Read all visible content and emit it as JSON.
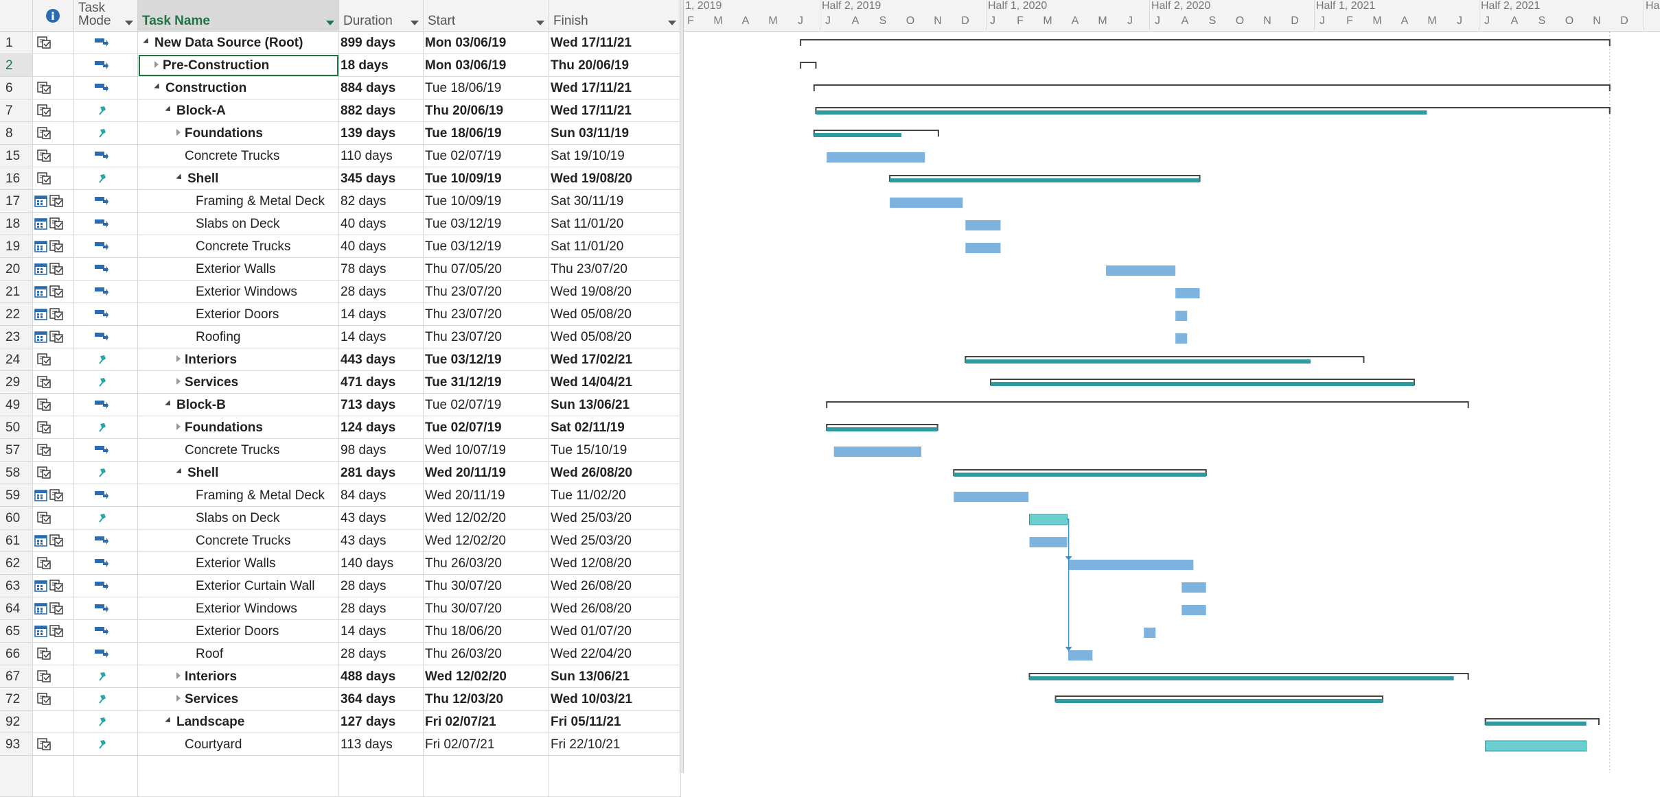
{
  "headers": {
    "indicators_icon": "info-icon",
    "task_mode_line1": "Task",
    "task_mode_line2": "Mode",
    "task_name": "Task Name",
    "duration": "Duration",
    "start": "Start",
    "finish": "Finish"
  },
  "timeline": {
    "top": [
      "1, 2019",
      "Half 2, 2019",
      "Half 1, 2020",
      "Half 2, 2020",
      "Half 1, 2021",
      "Half 2, 2021",
      "Ha"
    ],
    "months": [
      "F",
      "M",
      "A",
      "M",
      "J",
      "J",
      "A",
      "S",
      "O",
      "N",
      "D",
      "J",
      "F",
      "M",
      "A",
      "M",
      "J",
      "J",
      "A",
      "S",
      "O",
      "N",
      "D",
      "J",
      "F",
      "M",
      "A",
      "M",
      "J",
      "J",
      "A",
      "S",
      "O",
      "N",
      "D"
    ]
  },
  "colors": {
    "summary_bar": "#2e9aa0",
    "task_bar": "#7eb3e0",
    "manual_bar": "#6ccfcf",
    "bracket": "#444444",
    "selected_green": "#217346"
  },
  "tasks": [
    {
      "id": "1",
      "ind": "notes",
      "mode": "auto",
      "name": "New Data Source (Root)",
      "level": 0,
      "toggle": "open",
      "bold": true,
      "duration": "899 days",
      "start": "Mon 03/06/19",
      "finish": "Wed 17/11/21",
      "start_bold": true,
      "bar": {
        "type": "summary",
        "s": "2019-06-03",
        "f": "2021-11-17",
        "progress": null
      }
    },
    {
      "id": "2",
      "ind": "",
      "mode": "auto",
      "name": "Pre-Construction",
      "level": 1,
      "toggle": "closed",
      "bold": true,
      "duration": "18 days",
      "start": "Mon 03/06/19",
      "finish": "Thu 20/06/19",
      "start_bold": true,
      "selected": true,
      "bar": {
        "type": "summary",
        "s": "2019-06-03",
        "f": "2019-06-20",
        "progress": null
      }
    },
    {
      "id": "6",
      "ind": "notes",
      "mode": "auto",
      "name": "Construction",
      "level": 1,
      "toggle": "open",
      "bold": true,
      "duration": "884 days",
      "start": "Tue 18/06/19",
      "finish": "Wed 17/11/21",
      "start_bold": false,
      "bar": {
        "type": "summary",
        "s": "2019-06-18",
        "f": "2021-11-17",
        "progress": null
      }
    },
    {
      "id": "7",
      "ind": "notes",
      "mode": "manual",
      "name": "Block-A",
      "level": 2,
      "toggle": "open",
      "bold": true,
      "duration": "882 days",
      "start": "Thu 20/06/19",
      "finish": "Wed 17/11/21",
      "start_bold": true,
      "bar": {
        "type": "msummary",
        "s": "2019-06-20",
        "f": "2021-11-17",
        "inner_f": "2021-04-28"
      }
    },
    {
      "id": "8",
      "ind": "notes",
      "mode": "manual",
      "name": "Foundations",
      "level": 3,
      "toggle": "closed",
      "bold": true,
      "duration": "139 days",
      "start": "Tue 18/06/19",
      "finish": "Sun 03/11/19",
      "start_bold": true,
      "bar": {
        "type": "msummary",
        "s": "2019-06-18",
        "f": "2019-11-03",
        "inner_f": "2019-09-23"
      }
    },
    {
      "id": "15",
      "ind": "notes",
      "mode": "auto",
      "name": "Concrete Trucks",
      "level": 3,
      "toggle": "",
      "bold": false,
      "duration": "110 days",
      "start": "Tue 02/07/19",
      "finish": "Sat 19/10/19",
      "start_bold": false,
      "bar": {
        "type": "task",
        "s": "2019-07-02",
        "f": "2019-10-19"
      }
    },
    {
      "id": "16",
      "ind": "notes",
      "mode": "manual",
      "name": "Shell",
      "level": 3,
      "toggle": "open",
      "bold": true,
      "duration": "345 days",
      "start": "Tue 10/09/19",
      "finish": "Wed 19/08/20",
      "start_bold": true,
      "bar": {
        "type": "msummary",
        "s": "2019-09-10",
        "f": "2020-08-19",
        "inner_f": "2020-08-19"
      }
    },
    {
      "id": "17",
      "ind": "cal",
      "mode": "auto",
      "name": "Framing & Metal Deck",
      "level": 4,
      "toggle": "",
      "bold": false,
      "duration": "82 days",
      "start": "Tue 10/09/19",
      "finish": "Sat 30/11/19",
      "start_bold": false,
      "bar": {
        "type": "task",
        "s": "2019-09-10",
        "f": "2019-11-30"
      }
    },
    {
      "id": "18",
      "ind": "cal",
      "mode": "auto",
      "name": "Slabs on Deck",
      "level": 4,
      "toggle": "",
      "bold": false,
      "duration": "40 days",
      "start": "Tue 03/12/19",
      "finish": "Sat 11/01/20",
      "start_bold": false,
      "bar": {
        "type": "task",
        "s": "2019-12-03",
        "f": "2020-01-11"
      }
    },
    {
      "id": "19",
      "ind": "cal",
      "mode": "auto",
      "name": "Concrete Trucks",
      "level": 4,
      "toggle": "",
      "bold": false,
      "duration": "40 days",
      "start": "Tue 03/12/19",
      "finish": "Sat 11/01/20",
      "start_bold": false,
      "bar": {
        "type": "task",
        "s": "2019-12-03",
        "f": "2020-01-11"
      }
    },
    {
      "id": "20",
      "ind": "cal",
      "mode": "auto",
      "name": "Exterior Walls",
      "level": 4,
      "toggle": "",
      "bold": false,
      "duration": "78 days",
      "start": "Thu 07/05/20",
      "finish": "Thu 23/07/20",
      "start_bold": false,
      "bar": {
        "type": "task",
        "s": "2020-05-07",
        "f": "2020-07-23"
      }
    },
    {
      "id": "21",
      "ind": "cal",
      "mode": "auto",
      "name": "Exterior Windows",
      "level": 4,
      "toggle": "",
      "bold": false,
      "duration": "28 days",
      "start": "Thu 23/07/20",
      "finish": "Wed 19/08/20",
      "start_bold": false,
      "bar": {
        "type": "task",
        "s": "2020-07-23",
        "f": "2020-08-19"
      }
    },
    {
      "id": "22",
      "ind": "cal",
      "mode": "auto",
      "name": "Exterior Doors",
      "level": 4,
      "toggle": "",
      "bold": false,
      "duration": "14 days",
      "start": "Thu 23/07/20",
      "finish": "Wed 05/08/20",
      "start_bold": false,
      "bar": {
        "type": "task",
        "s": "2020-07-23",
        "f": "2020-08-05"
      }
    },
    {
      "id": "23",
      "ind": "cal",
      "mode": "auto",
      "name": "Roofing",
      "level": 4,
      "toggle": "",
      "bold": false,
      "duration": "14 days",
      "start": "Thu 23/07/20",
      "finish": "Wed 05/08/20",
      "start_bold": false,
      "bar": {
        "type": "task",
        "s": "2020-07-23",
        "f": "2020-08-05"
      }
    },
    {
      "id": "24",
      "ind": "notes",
      "mode": "manual",
      "name": "Interiors",
      "level": 3,
      "toggle": "closed",
      "bold": true,
      "duration": "443 days",
      "start": "Tue 03/12/19",
      "finish": "Wed 17/02/21",
      "start_bold": true,
      "bar": {
        "type": "msummary",
        "s": "2019-12-03",
        "f": "2021-02-17",
        "inner_f": "2020-12-20"
      }
    },
    {
      "id": "29",
      "ind": "notes",
      "mode": "manual",
      "name": "Services",
      "level": 3,
      "toggle": "closed",
      "bold": true,
      "duration": "471 days",
      "start": "Tue 31/12/19",
      "finish": "Wed 14/04/21",
      "start_bold": true,
      "bar": {
        "type": "msummary",
        "s": "2019-12-31",
        "f": "2021-04-14",
        "inner_f": "2021-04-14"
      }
    },
    {
      "id": "49",
      "ind": "notes",
      "mode": "auto",
      "name": "Block-B",
      "level": 2,
      "toggle": "open",
      "bold": true,
      "duration": "713 days",
      "start": "Tue 02/07/19",
      "finish": "Sun 13/06/21",
      "start_bold": false,
      "bar": {
        "type": "summary",
        "s": "2019-07-02",
        "f": "2021-06-13",
        "progress": null
      }
    },
    {
      "id": "50",
      "ind": "notes",
      "mode": "manual",
      "name": "Foundations",
      "level": 3,
      "toggle": "closed",
      "bold": true,
      "duration": "124 days",
      "start": "Tue 02/07/19",
      "finish": "Sat 02/11/19",
      "start_bold": true,
      "bar": {
        "type": "msummary",
        "s": "2019-07-02",
        "f": "2019-11-02",
        "inner_f": "2019-11-02"
      }
    },
    {
      "id": "57",
      "ind": "notes",
      "mode": "auto",
      "name": "Concrete Trucks",
      "level": 3,
      "toggle": "",
      "bold": false,
      "duration": "98 days",
      "start": "Wed 10/07/19",
      "finish": "Tue 15/10/19",
      "start_bold": false,
      "bar": {
        "type": "task",
        "s": "2019-07-10",
        "f": "2019-10-15"
      }
    },
    {
      "id": "58",
      "ind": "notes",
      "mode": "manual",
      "name": "Shell",
      "level": 3,
      "toggle": "open",
      "bold": true,
      "duration": "281 days",
      "start": "Wed 20/11/19",
      "finish": "Wed 26/08/20",
      "start_bold": true,
      "bar": {
        "type": "msummary",
        "s": "2019-11-20",
        "f": "2020-08-26",
        "inner_f": "2020-08-26"
      }
    },
    {
      "id": "59",
      "ind": "cal",
      "mode": "auto",
      "name": "Framing & Metal Deck",
      "level": 4,
      "toggle": "",
      "bold": false,
      "duration": "84 days",
      "start": "Wed 20/11/19",
      "finish": "Tue 11/02/20",
      "start_bold": false,
      "bar": {
        "type": "task",
        "s": "2019-11-20",
        "f": "2020-02-11"
      }
    },
    {
      "id": "60",
      "ind": "notes",
      "mode": "manual",
      "name": "Slabs on Deck",
      "level": 4,
      "toggle": "",
      "bold": false,
      "duration": "43 days",
      "start": "Wed 12/02/20",
      "finish": "Wed 25/03/20",
      "start_bold": false,
      "bar": {
        "type": "manual",
        "s": "2020-02-12",
        "f": "2020-03-25"
      }
    },
    {
      "id": "61",
      "ind": "cal",
      "mode": "auto",
      "name": "Concrete Trucks",
      "level": 4,
      "toggle": "",
      "bold": false,
      "duration": "43 days",
      "start": "Wed 12/02/20",
      "finish": "Wed 25/03/20",
      "start_bold": false,
      "bar": {
        "type": "task",
        "s": "2020-02-12",
        "f": "2020-03-25"
      }
    },
    {
      "id": "62",
      "ind": "notes",
      "mode": "auto",
      "name": "Exterior Walls",
      "level": 4,
      "toggle": "",
      "bold": false,
      "duration": "140 days",
      "start": "Thu 26/03/20",
      "finish": "Wed 12/08/20",
      "start_bold": false,
      "bar": {
        "type": "task",
        "s": "2020-03-26",
        "f": "2020-08-12"
      }
    },
    {
      "id": "63",
      "ind": "cal",
      "mode": "auto",
      "name": "Exterior Curtain Wall",
      "level": 4,
      "toggle": "",
      "bold": false,
      "duration": "28 days",
      "start": "Thu 30/07/20",
      "finish": "Wed 26/08/20",
      "start_bold": false,
      "bar": {
        "type": "task",
        "s": "2020-07-30",
        "f": "2020-08-26"
      }
    },
    {
      "id": "64",
      "ind": "cal",
      "mode": "auto",
      "name": "Exterior Windows",
      "level": 4,
      "toggle": "",
      "bold": false,
      "duration": "28 days",
      "start": "Thu 30/07/20",
      "finish": "Wed 26/08/20",
      "start_bold": false,
      "bar": {
        "type": "task",
        "s": "2020-07-30",
        "f": "2020-08-26"
      }
    },
    {
      "id": "65",
      "ind": "cal",
      "mode": "auto",
      "name": "Exterior Doors",
      "level": 4,
      "toggle": "",
      "bold": false,
      "duration": "14 days",
      "start": "Thu 18/06/20",
      "finish": "Wed 01/07/20",
      "start_bold": false,
      "bar": {
        "type": "task",
        "s": "2020-06-18",
        "f": "2020-07-01"
      }
    },
    {
      "id": "66",
      "ind": "notes",
      "mode": "auto",
      "name": "Roof",
      "level": 4,
      "toggle": "",
      "bold": false,
      "duration": "28 days",
      "start": "Thu 26/03/20",
      "finish": "Wed 22/04/20",
      "start_bold": false,
      "bar": {
        "type": "task",
        "s": "2020-03-26",
        "f": "2020-04-22"
      }
    },
    {
      "id": "67",
      "ind": "notes",
      "mode": "manual",
      "name": "Interiors",
      "level": 3,
      "toggle": "closed",
      "bold": true,
      "duration": "488 days",
      "start": "Wed 12/02/20",
      "finish": "Sun 13/06/21",
      "start_bold": true,
      "bar": {
        "type": "msummary",
        "s": "2020-02-12",
        "f": "2021-06-13",
        "inner_f": "2021-05-28"
      }
    },
    {
      "id": "72",
      "ind": "notes",
      "mode": "manual",
      "name": "Services",
      "level": 3,
      "toggle": "closed",
      "bold": true,
      "duration": "364 days",
      "start": "Thu 12/03/20",
      "finish": "Wed 10/03/21",
      "start_bold": true,
      "bar": {
        "type": "msummary",
        "s": "2020-03-12",
        "f": "2021-03-10",
        "inner_f": "2021-03-10"
      }
    },
    {
      "id": "92",
      "ind": "",
      "mode": "manual",
      "name": "Landscape",
      "level": 2,
      "toggle": "open",
      "bold": true,
      "duration": "127 days",
      "start": "Fri 02/07/21",
      "finish": "Fri 05/11/21",
      "start_bold": true,
      "bar": {
        "type": "msummary",
        "s": "2021-07-02",
        "f": "2021-11-05",
        "inner_f": "2021-10-22"
      }
    },
    {
      "id": "93",
      "ind": "notes",
      "mode": "manual",
      "name": "Courtyard",
      "level": 3,
      "toggle": "",
      "bold": false,
      "duration": "113 days",
      "start": "Fri 02/07/21",
      "finish": "Fri 22/10/21",
      "start_bold": false,
      "bar": {
        "type": "manual",
        "s": "2021-07-02",
        "f": "2021-10-22"
      }
    }
  ]
}
